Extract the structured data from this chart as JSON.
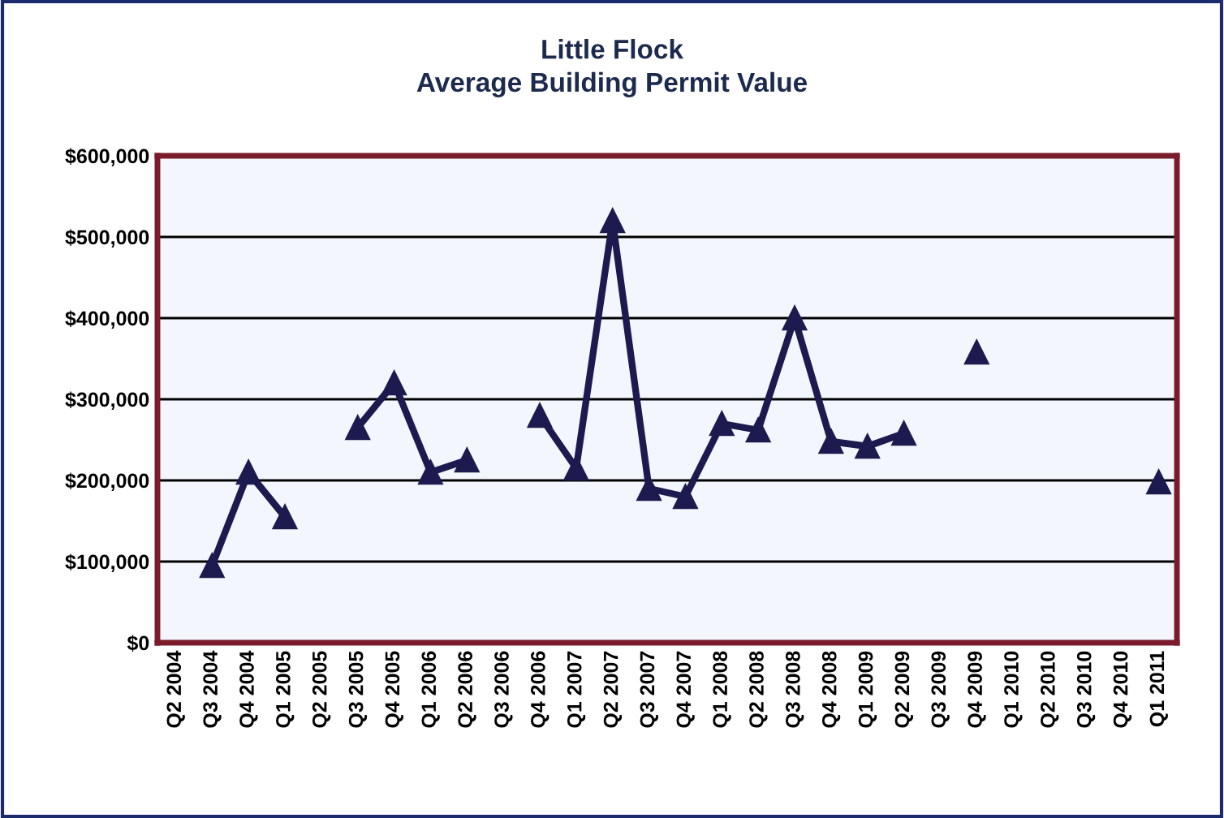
{
  "chart_data": {
    "type": "line",
    "title": "Little Flock\nAverage Building Permit Value",
    "categories": [
      "Q2 2004",
      "Q3 2004",
      "Q4 2004",
      "Q1 2005",
      "Q2 2005",
      "Q3 2005",
      "Q4 2005",
      "Q1 2006",
      "Q2 2006",
      "Q3 2006",
      "Q4 2006",
      "Q1 2007",
      "Q2 2007",
      "Q3 2007",
      "Q4 2007",
      "Q1 2008",
      "Q2 2008",
      "Q3 2008",
      "Q4 2008",
      "Q1 2009",
      "Q2 2009",
      "Q3 2009",
      "Q4 2009",
      "Q1 2010",
      "Q2 2010",
      "Q3 2010",
      "Q4 2010",
      "Q1 2011"
    ],
    "series": [
      {
        "color": "#1c1a4f",
        "values": [
          null,
          95000,
          210000,
          155000,
          null,
          265000,
          320000,
          210000,
          225000,
          null,
          280000,
          215000,
          520000,
          190000,
          180000,
          270000,
          262000,
          400000,
          248000,
          242000,
          258000,
          null,
          358000,
          null,
          null,
          null,
          null,
          198000
        ]
      }
    ],
    "ylim": [
      0,
      600000
    ],
    "yticks": [
      {
        "value": 0,
        "label": "$0"
      },
      {
        "value": 100000,
        "label": "$100,000"
      },
      {
        "value": 200000,
        "label": "$200,000"
      },
      {
        "value": 300000,
        "label": "$300,000"
      },
      {
        "value": 400000,
        "label": "$400,000"
      },
      {
        "value": 500000,
        "label": "$500,000"
      },
      {
        "value": 600000,
        "label": "$600,000"
      }
    ],
    "grid": "y",
    "marker": "triangle",
    "line_style": "solid"
  }
}
